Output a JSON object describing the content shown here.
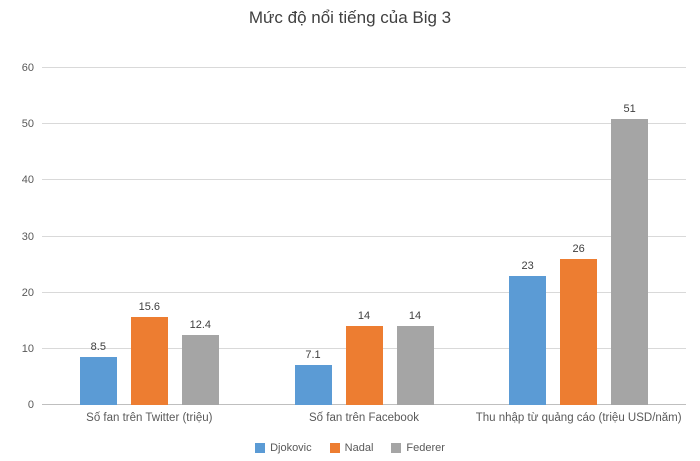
{
  "chart_data": {
    "type": "bar",
    "title": "Mức độ nổi tiếng của Big 3",
    "categories": [
      "Số fan trên Twitter (triệu)",
      "Số fan trên Facebook",
      "Thu nhập từ quảng cáo (triệu USD/năm)"
    ],
    "series": [
      {
        "name": "Djokovic",
        "color": "#5B9BD5",
        "values": [
          8.5,
          7.1,
          23
        ]
      },
      {
        "name": "Nadal",
        "color": "#ED7D31",
        "values": [
          15.6,
          14,
          26
        ]
      },
      {
        "name": "Federer",
        "color": "#A5A5A5",
        "values": [
          12.4,
          14,
          51
        ]
      }
    ],
    "xlabel": "",
    "ylabel": "",
    "ylim": [
      0,
      60
    ],
    "ytick_step": 10,
    "grid": true,
    "legend_position": "bottom"
  }
}
